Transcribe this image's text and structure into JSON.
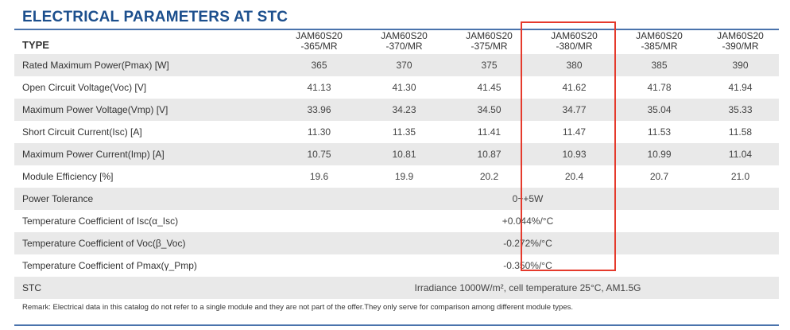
{
  "title": "ELECTRICAL PARAMETERS AT STC",
  "type_label": "TYPE",
  "models": [
    {
      "line1": "JAM60S20",
      "line2": "-365/MR"
    },
    {
      "line1": "JAM60S20",
      "line2": "-370/MR"
    },
    {
      "line1": "JAM60S20",
      "line2": "-375/MR"
    },
    {
      "line1": "JAM60S20",
      "line2": "-380/MR"
    },
    {
      "line1": "JAM60S20",
      "line2": "-385/MR"
    },
    {
      "line1": "JAM60S20",
      "line2": "-390/MR"
    }
  ],
  "rows": [
    {
      "label": "Rated Maximum Power(Pmax) [W]",
      "values": [
        "365",
        "370",
        "375",
        "380",
        "385",
        "390"
      ]
    },
    {
      "label": "Open Circuit Voltage(Voc) [V]",
      "values": [
        "41.13",
        "41.30",
        "41.45",
        "41.62",
        "41.78",
        "41.94"
      ]
    },
    {
      "label": "Maximum Power Voltage(Vmp) [V]",
      "values": [
        "33.96",
        "34.23",
        "34.50",
        "34.77",
        "35.04",
        "35.33"
      ]
    },
    {
      "label": "Short Circuit Current(Isc) [A]",
      "values": [
        "11.30",
        "11.35",
        "11.41",
        "11.47",
        "11.53",
        "11.58"
      ]
    },
    {
      "label": "Maximum Power Current(Imp) [A]",
      "values": [
        "10.75",
        "10.81",
        "10.87",
        "10.93",
        "10.99",
        "11.04"
      ]
    },
    {
      "label": "Module Efficiency [%]",
      "values": [
        "19.6",
        "19.9",
        "20.2",
        "20.4",
        "20.7",
        "21.0"
      ]
    }
  ],
  "span_rows": [
    {
      "label": "Power Tolerance",
      "value": "0~+5W"
    },
    {
      "label": "Temperature Coefficient of Isc(α_Isc)",
      "value": "+0.044%/°C"
    },
    {
      "label": "Temperature Coefficient of Voc(β_Voc)",
      "value": "-0.272%/°C"
    },
    {
      "label": "Temperature Coefficient of Pmax(γ_Pmp)",
      "value": "-0.350%/°C"
    }
  ],
  "stc": {
    "label": "STC",
    "value": "Irradiance 1000W/m²,  cell temperature 25°C, AM1.5G"
  },
  "remark": "Remark: Electrical data in this catalog do not refer to a single module and they are not part of the offer.They only serve for comparison among different module types.",
  "colors": {
    "title": "#1c4f8d",
    "rule": "#4a73ac",
    "highlight": "#e53a2c",
    "shade": "#e9e9e9"
  }
}
